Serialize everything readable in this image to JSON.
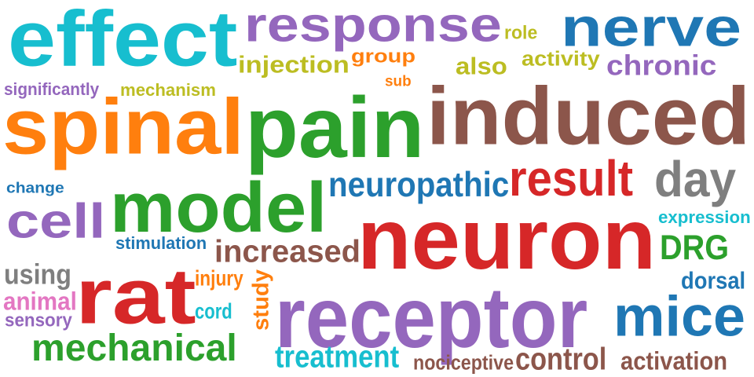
{
  "palette": {
    "cyan": "#17becf",
    "purple": "#9467bd",
    "blue": "#1f77b4",
    "orange": "#ff7f0e",
    "green": "#2ca02c",
    "brown": "#8c564b",
    "red": "#d62728",
    "gray": "#7f7f7f",
    "olive": "#bcbd22",
    "pink": "#e377c2"
  },
  "words": [
    {
      "id": "effect",
      "text": "effect",
      "color": "cyan"
    },
    {
      "id": "response",
      "text": "response",
      "color": "purple"
    },
    {
      "id": "role",
      "text": "role",
      "color": "olive"
    },
    {
      "id": "nerve",
      "text": "nerve",
      "color": "blue"
    },
    {
      "id": "group",
      "text": "group",
      "color": "orange"
    },
    {
      "id": "activity",
      "text": "activity",
      "color": "olive"
    },
    {
      "id": "injection",
      "text": "injection",
      "color": "olive"
    },
    {
      "id": "also",
      "text": "also",
      "color": "olive"
    },
    {
      "id": "chronic",
      "text": "chronic",
      "color": "purple"
    },
    {
      "id": "significantly",
      "text": "significantly",
      "color": "purple"
    },
    {
      "id": "mechanism",
      "text": "mechanism",
      "color": "olive"
    },
    {
      "id": "sub",
      "text": "sub",
      "color": "orange"
    },
    {
      "id": "spinal",
      "text": "spinal",
      "color": "orange"
    },
    {
      "id": "pain",
      "text": "pain",
      "color": "green"
    },
    {
      "id": "induced",
      "text": "induced",
      "color": "brown"
    },
    {
      "id": "result",
      "text": "result",
      "color": "red"
    },
    {
      "id": "day",
      "text": "day",
      "color": "gray"
    },
    {
      "id": "neuropathic",
      "text": "neuropathic",
      "color": "blue"
    },
    {
      "id": "change",
      "text": "change",
      "color": "blue"
    },
    {
      "id": "model",
      "text": "model",
      "color": "green"
    },
    {
      "id": "cell",
      "text": "cell",
      "color": "purple"
    },
    {
      "id": "expression",
      "text": "expression",
      "color": "cyan"
    },
    {
      "id": "neuron",
      "text": "neuron",
      "color": "red"
    },
    {
      "id": "DRG",
      "text": "DRG",
      "color": "green"
    },
    {
      "id": "stimulation",
      "text": "stimulation",
      "color": "blue"
    },
    {
      "id": "increased",
      "text": "increased",
      "color": "brown"
    },
    {
      "id": "using",
      "text": "using",
      "color": "gray"
    },
    {
      "id": "rat",
      "text": "rat",
      "color": "red"
    },
    {
      "id": "injury",
      "text": "injury",
      "color": "orange"
    },
    {
      "id": "study",
      "text": "study",
      "color": "orange"
    },
    {
      "id": "dorsal",
      "text": "dorsal",
      "color": "blue"
    },
    {
      "id": "animal",
      "text": "animal",
      "color": "pink"
    },
    {
      "id": "receptor",
      "text": "receptor",
      "color": "purple"
    },
    {
      "id": "mice",
      "text": "mice",
      "color": "blue"
    },
    {
      "id": "sensory",
      "text": "sensory",
      "color": "purple"
    },
    {
      "id": "cord",
      "text": "cord",
      "color": "cyan"
    },
    {
      "id": "mechanical",
      "text": "mechanical",
      "color": "green"
    },
    {
      "id": "treatment",
      "text": "treatment",
      "color": "cyan"
    },
    {
      "id": "nociceptive",
      "text": "nociceptive",
      "color": "brown"
    },
    {
      "id": "control",
      "text": "control",
      "color": "brown"
    },
    {
      "id": "activation",
      "text": "activation",
      "color": "brown"
    }
  ]
}
